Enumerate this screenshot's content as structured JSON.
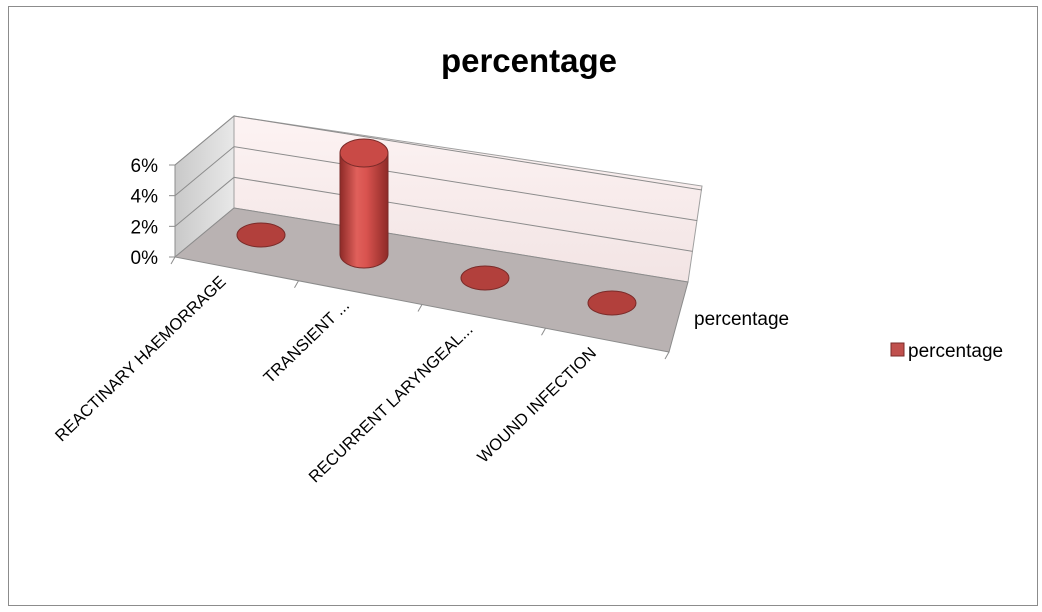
{
  "chart_data": {
    "type": "bar",
    "style": "3d-column-cylinder",
    "title": "percentage",
    "categories": [
      "REACTINARY  HAEMORRAGE",
      "TRANSIENT ...",
      "RECURRENT LARYNGEAL...",
      "WOUND INFECTION"
    ],
    "series": [
      {
        "name": "percentage",
        "values": [
          0,
          5,
          0,
          0
        ],
        "color": "#c0504d"
      }
    ],
    "ylim": [
      0,
      6
    ],
    "y_ticks": [
      "0%",
      "2%",
      "4%",
      "6%"
    ],
    "depth_axis_label": "percentage",
    "grid": true,
    "legend_position": "right"
  }
}
